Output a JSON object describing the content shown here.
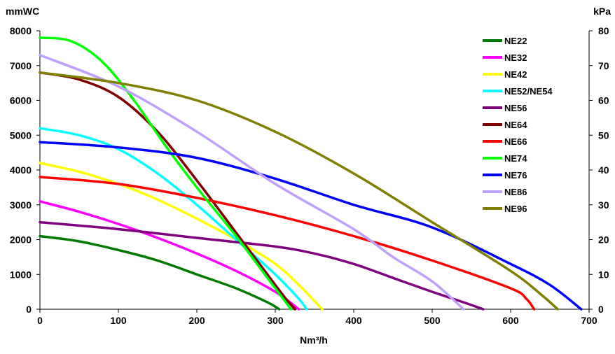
{
  "chart_data": {
    "type": "line",
    "title": "",
    "xlabel": "Nm³/h",
    "ylabel": "mmWC",
    "y2label": "kPa",
    "xlim": [
      0,
      700
    ],
    "ylim": [
      0,
      8000
    ],
    "y2lim": [
      0,
      80
    ],
    "xticks": [
      "0",
      "100",
      "200",
      "300",
      "400",
      "500",
      "600",
      "700"
    ],
    "yticks": [
      "0",
      "1000",
      "2000",
      "3000",
      "4000",
      "5000",
      "6000",
      "7000",
      "8000"
    ],
    "y2ticks": [
      "0",
      "10",
      "20",
      "30",
      "40",
      "50",
      "60",
      "70",
      "80"
    ],
    "grid": false,
    "legend_position": "top-right",
    "series": [
      {
        "name": "NE22",
        "color": "#007a00",
        "points": [
          [
            0,
            2100
          ],
          [
            50,
            1950
          ],
          [
            100,
            1700
          ],
          [
            150,
            1400
          ],
          [
            200,
            1000
          ],
          [
            250,
            600
          ],
          [
            290,
            200
          ],
          [
            305,
            0
          ]
        ]
      },
      {
        "name": "NE32",
        "color": "#ff00ff",
        "points": [
          [
            0,
            3100
          ],
          [
            50,
            2800
          ],
          [
            100,
            2450
          ],
          [
            150,
            2050
          ],
          [
            200,
            1600
          ],
          [
            250,
            1100
          ],
          [
            300,
            500
          ],
          [
            330,
            0
          ]
        ]
      },
      {
        "name": "NE42",
        "color": "#ffff00",
        "points": [
          [
            0,
            4200
          ],
          [
            50,
            3950
          ],
          [
            100,
            3600
          ],
          [
            150,
            3150
          ],
          [
            200,
            2600
          ],
          [
            250,
            2000
          ],
          [
            300,
            1300
          ],
          [
            330,
            700
          ],
          [
            360,
            0
          ]
        ]
      },
      {
        "name": "NE52/NE54",
        "color": "#00ffff",
        "points": [
          [
            0,
            5200
          ],
          [
            50,
            5000
          ],
          [
            100,
            4600
          ],
          [
            150,
            3900
          ],
          [
            200,
            3000
          ],
          [
            250,
            2000
          ],
          [
            300,
            1000
          ],
          [
            330,
            300
          ],
          [
            340,
            0
          ]
        ]
      },
      {
        "name": "NE56",
        "color": "#800080",
        "points": [
          [
            0,
            2500
          ],
          [
            100,
            2300
          ],
          [
            200,
            2050
          ],
          [
            300,
            1800
          ],
          [
            350,
            1600
          ],
          [
            400,
            1300
          ],
          [
            450,
            900
          ],
          [
            500,
            500
          ],
          [
            540,
            200
          ],
          [
            565,
            0
          ]
        ]
      },
      {
        "name": "NE64",
        "color": "#800000",
        "points": [
          [
            0,
            6800
          ],
          [
            50,
            6600
          ],
          [
            100,
            6100
          ],
          [
            150,
            5100
          ],
          [
            200,
            3700
          ],
          [
            250,
            2200
          ],
          [
            280,
            1300
          ],
          [
            310,
            400
          ],
          [
            325,
            0
          ]
        ]
      },
      {
        "name": "NE66",
        "color": "#ff0000",
        "points": [
          [
            0,
            3800
          ],
          [
            100,
            3600
          ],
          [
            200,
            3200
          ],
          [
            300,
            2700
          ],
          [
            400,
            2100
          ],
          [
            500,
            1400
          ],
          [
            600,
            600
          ],
          [
            620,
            300
          ],
          [
            630,
            0
          ]
        ]
      },
      {
        "name": "NE74",
        "color": "#00ff00",
        "points": [
          [
            0,
            7800
          ],
          [
            40,
            7700
          ],
          [
            80,
            7100
          ],
          [
            120,
            6000
          ],
          [
            160,
            4700
          ],
          [
            200,
            3500
          ],
          [
            250,
            2100
          ],
          [
            290,
            900
          ],
          [
            320,
            0
          ]
        ]
      },
      {
        "name": "NE76",
        "color": "#0000ff",
        "points": [
          [
            0,
            4800
          ],
          [
            100,
            4650
          ],
          [
            200,
            4350
          ],
          [
            300,
            3750
          ],
          [
            400,
            3000
          ],
          [
            500,
            2350
          ],
          [
            600,
            1300
          ],
          [
            650,
            700
          ],
          [
            690,
            0
          ]
        ]
      },
      {
        "name": "NE86",
        "color": "#c0a0ff",
        "points": [
          [
            0,
            7300
          ],
          [
            100,
            6400
          ],
          [
            200,
            5100
          ],
          [
            300,
            3600
          ],
          [
            400,
            2300
          ],
          [
            450,
            1500
          ],
          [
            500,
            800
          ],
          [
            540,
            0
          ]
        ]
      },
      {
        "name": "NE96",
        "color": "#808000",
        "points": [
          [
            0,
            6800
          ],
          [
            100,
            6500
          ],
          [
            200,
            6000
          ],
          [
            300,
            5100
          ],
          [
            400,
            3900
          ],
          [
            500,
            2500
          ],
          [
            600,
            1100
          ],
          [
            640,
            400
          ],
          [
            660,
            0
          ]
        ]
      }
    ]
  }
}
